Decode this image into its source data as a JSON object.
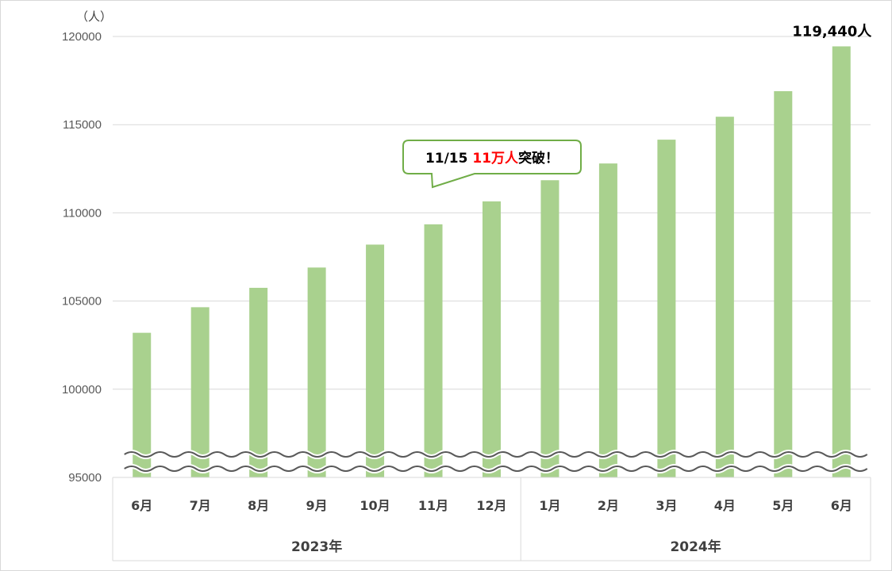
{
  "chart_data": {
    "type": "bar",
    "title": "",
    "xlabel": "",
    "ylabel": "",
    "y_unit": "（人）",
    "ylim": [
      95000,
      120000
    ],
    "yticks": [
      95000,
      100000,
      105000,
      110000,
      115000,
      120000
    ],
    "grid": true,
    "axis_break": true,
    "bar_color": "#a9d18e",
    "categories": [
      "6月",
      "7月",
      "8月",
      "9月",
      "10月",
      "11月",
      "12月",
      "1月",
      "2月",
      "3月",
      "4月",
      "5月",
      "6月"
    ],
    "values": [
      103200,
      104650,
      105750,
      106900,
      108200,
      109350,
      110650,
      111850,
      112800,
      114150,
      115450,
      116900,
      119440
    ],
    "groups": [
      {
        "label": "2023年",
        "count": 7
      },
      {
        "label": "2024年",
        "count": 6
      }
    ],
    "data_labels": [
      {
        "index": 12,
        "text": "119,440人"
      }
    ],
    "annotation": {
      "prefix": "11/15 ",
      "highlight": "11万人",
      "suffix": "突破！",
      "highlight_color": "#ff0000",
      "border_color": "#70ad47"
    }
  }
}
